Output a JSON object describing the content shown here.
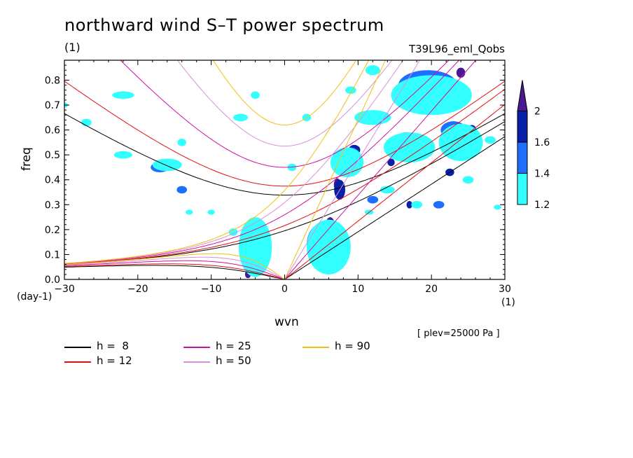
{
  "title": "northward wind S–T power spectrum",
  "title_unit": "(1)",
  "run_name": "T39L96_eml_Qobs",
  "level_note": "[ plev=25000 Pa ]",
  "chart_data": {
    "type": "heatmap",
    "xlabel": "wvn",
    "ylabel": "freq",
    "x_unit": "(1)",
    "y_unit": "(day-1)",
    "xlim": [
      -30,
      30
    ],
    "ylim": [
      0,
      0.88
    ],
    "x_ticks": [
      -30,
      -20,
      -10,
      0,
      10,
      20,
      30
    ],
    "x_tick_labels": [
      "−30",
      "−20",
      "−10",
      "0",
      "10",
      "20",
      "30"
    ],
    "y_ticks": [
      0,
      0.1,
      0.2,
      0.3,
      0.4,
      0.5,
      0.6,
      0.7,
      0.8
    ],
    "y_tick_labels": [
      "0.0",
      "0.1",
      "0.2",
      "0.3",
      "0.4",
      "0.5",
      "0.6",
      "0.7",
      "0.8"
    ],
    "colorbar": {
      "levels": [
        "1.2",
        "1.4",
        "1.6",
        "2"
      ],
      "colors": [
        "#33ffff",
        "#1f6fff",
        "#0a1fa8",
        "#4a1890"
      ]
    },
    "dispersion_curves": [
      {
        "label": "h =  8",
        "h": 8,
        "color": "#000000"
      },
      {
        "label": "h = 12",
        "h": 12,
        "color": "#e01010"
      },
      {
        "label": "h = 25",
        "h": 25,
        "color": "#d010a0"
      },
      {
        "label": "h = 50",
        "h": 50,
        "color": "#d890d8"
      },
      {
        "label": "h = 90",
        "h": 90,
        "color": "#f0c010"
      }
    ],
    "power_regions": [
      {
        "x": 5.5,
        "y": 0.06,
        "w": 2.6,
        "h": 0.05,
        "level": 3
      },
      {
        "x": 6.2,
        "y": 0.18,
        "w": 1.8,
        "h": 0.14,
        "level": 3
      },
      {
        "x": 7.2,
        "y": 0.38,
        "w": 1.0,
        "h": 0.05,
        "level": 3
      },
      {
        "x": -3.8,
        "y": 0.08,
        "w": 1.2,
        "h": 0.09,
        "level": 3
      },
      {
        "x": -5.0,
        "y": 0.02,
        "w": 0.8,
        "h": 0.03,
        "level": 3
      },
      {
        "x": 24.0,
        "y": 0.83,
        "w": 1.2,
        "h": 0.04,
        "level": 3
      },
      {
        "x": 19.0,
        "y": 0.81,
        "w": 1.0,
        "h": 0.04,
        "level": 3
      },
      {
        "x": 5.5,
        "y": 0.12,
        "w": 4.0,
        "h": 0.14,
        "level": 2
      },
      {
        "x": -3.5,
        "y": 0.1,
        "w": 1.8,
        "h": 0.14,
        "level": 2
      },
      {
        "x": 7.5,
        "y": 0.36,
        "w": 1.5,
        "h": 0.08,
        "level": 2
      },
      {
        "x": 9.5,
        "y": 0.52,
        "w": 1.6,
        "h": 0.04,
        "level": 2
      },
      {
        "x": 17.0,
        "y": 0.56,
        "w": 1.2,
        "h": 0.04,
        "level": 2
      },
      {
        "x": 19.5,
        "y": 0.72,
        "w": 1.4,
        "h": 0.04,
        "level": 2
      },
      {
        "x": 21.0,
        "y": 0.78,
        "w": 1.5,
        "h": 0.05,
        "level": 2
      },
      {
        "x": 25.5,
        "y": 0.6,
        "w": 1.2,
        "h": 0.04,
        "level": 2
      },
      {
        "x": 22.5,
        "y": 0.43,
        "w": 1.2,
        "h": 0.03,
        "level": 2
      },
      {
        "x": 14.5,
        "y": 0.47,
        "w": 1.0,
        "h": 0.03,
        "level": 2
      },
      {
        "x": 17.0,
        "y": 0.3,
        "w": 0.8,
        "h": 0.03,
        "level": 2
      },
      {
        "x": 5.5,
        "y": 0.14,
        "w": 5.0,
        "h": 0.18,
        "level": 1
      },
      {
        "x": -4.0,
        "y": 0.12,
        "w": 3.0,
        "h": 0.18,
        "level": 1
      },
      {
        "x": 9.0,
        "y": 0.5,
        "w": 2.5,
        "h": 0.06,
        "level": 1
      },
      {
        "x": 19.5,
        "y": 0.78,
        "w": 8.0,
        "h": 0.12,
        "level": 1
      },
      {
        "x": 16.5,
        "y": 0.56,
        "w": 3.0,
        "h": 0.06,
        "level": 1
      },
      {
        "x": 23.0,
        "y": 0.6,
        "w": 3.5,
        "h": 0.07,
        "level": 1
      },
      {
        "x": -17.0,
        "y": 0.45,
        "w": 2.5,
        "h": 0.04,
        "level": 1
      },
      {
        "x": -14.0,
        "y": 0.36,
        "w": 1.4,
        "h": 0.03,
        "level": 1
      },
      {
        "x": 12.0,
        "y": 0.32,
        "w": 1.5,
        "h": 0.03,
        "level": 1
      },
      {
        "x": 21.0,
        "y": 0.3,
        "w": 1.5,
        "h": 0.03,
        "level": 1
      },
      {
        "x": 6.0,
        "y": 0.13,
        "w": 6.0,
        "h": 0.22,
        "level": 0
      },
      {
        "x": -4.0,
        "y": 0.13,
        "w": 4.5,
        "h": 0.24,
        "level": 0
      },
      {
        "x": 8.5,
        "y": 0.47,
        "w": 4.5,
        "h": 0.12,
        "level": 0
      },
      {
        "x": 12.0,
        "y": 0.65,
        "w": 5.0,
        "h": 0.06,
        "level": 0
      },
      {
        "x": 20.0,
        "y": 0.74,
        "w": 11.0,
        "h": 0.16,
        "level": 0
      },
      {
        "x": 17.0,
        "y": 0.53,
        "w": 7.0,
        "h": 0.12,
        "level": 0
      },
      {
        "x": 24.0,
        "y": 0.55,
        "w": 6.0,
        "h": 0.15,
        "level": 0
      },
      {
        "x": -16.0,
        "y": 0.46,
        "w": 4.0,
        "h": 0.05,
        "level": 0
      },
      {
        "x": -22.0,
        "y": 0.5,
        "w": 2.5,
        "h": 0.03,
        "level": 0
      },
      {
        "x": -22.0,
        "y": 0.74,
        "w": 3.0,
        "h": 0.03,
        "level": 0
      },
      {
        "x": -27.0,
        "y": 0.63,
        "w": 1.4,
        "h": 0.03,
        "level": 0
      },
      {
        "x": -6.0,
        "y": 0.65,
        "w": 2.0,
        "h": 0.03,
        "level": 0
      },
      {
        "x": -4.0,
        "y": 0.74,
        "w": 1.2,
        "h": 0.03,
        "level": 0
      },
      {
        "x": 3.0,
        "y": 0.65,
        "w": 1.2,
        "h": 0.03,
        "level": 0
      },
      {
        "x": 1.0,
        "y": 0.45,
        "w": 1.2,
        "h": 0.03,
        "level": 0
      },
      {
        "x": -14.0,
        "y": 0.55,
        "w": 1.2,
        "h": 0.03,
        "level": 0
      },
      {
        "x": -10.0,
        "y": 0.27,
        "w": 1.0,
        "h": 0.02,
        "level": 0
      },
      {
        "x": -13.0,
        "y": 0.27,
        "w": 1.0,
        "h": 0.02,
        "level": 0
      },
      {
        "x": 14.0,
        "y": 0.36,
        "w": 2.0,
        "h": 0.03,
        "level": 0
      },
      {
        "x": 18.0,
        "y": 0.3,
        "w": 1.5,
        "h": 0.03,
        "level": 0
      },
      {
        "x": 25.0,
        "y": 0.4,
        "w": 1.5,
        "h": 0.03,
        "level": 0
      },
      {
        "x": 11.5,
        "y": 0.27,
        "w": 1.2,
        "h": 0.02,
        "level": 0
      },
      {
        "x": 29.0,
        "y": 0.29,
        "w": 1.0,
        "h": 0.02,
        "level": 0
      },
      {
        "x": -7.0,
        "y": 0.19,
        "w": 1.2,
        "h": 0.03,
        "level": 0
      },
      {
        "x": 28.0,
        "y": 0.56,
        "w": 1.5,
        "h": 0.03,
        "level": 0
      },
      {
        "x": -30.0,
        "y": 0.7,
        "w": 1.0,
        "h": 0.02,
        "level": 0
      },
      {
        "x": 9.0,
        "y": 0.76,
        "w": 1.5,
        "h": 0.03,
        "level": 0
      },
      {
        "x": 12.0,
        "y": 0.84,
        "w": 2.0,
        "h": 0.04,
        "level": 0
      }
    ]
  }
}
